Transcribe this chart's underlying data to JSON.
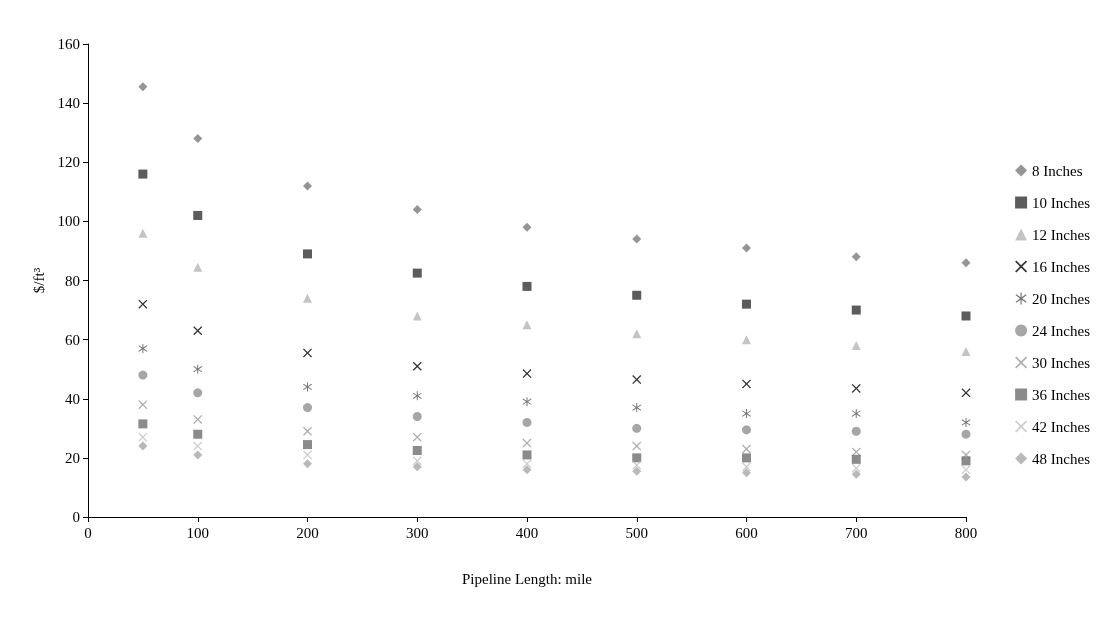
{
  "chart_data": {
    "type": "scatter",
    "xlabel": "Pipeline Length: mile",
    "ylabel": "$/ft³",
    "x": [
      50,
      100,
      200,
      300,
      400,
      500,
      600,
      700,
      800
    ],
    "xlim": [
      0,
      800
    ],
    "xticks": [
      0,
      100,
      200,
      300,
      400,
      500,
      600,
      700,
      800
    ],
    "ylim": [
      0,
      160
    ],
    "yticks": [
      0,
      20,
      40,
      60,
      80,
      100,
      120,
      140,
      160
    ],
    "grid": false,
    "legend": "right",
    "series": [
      {
        "name": "8 Inches",
        "color": "#7a7a7a",
        "marker": "diamond",
        "values": [
          145.5,
          128,
          112,
          104,
          98,
          94,
          91,
          88,
          86
        ]
      },
      {
        "name": "10 Inches",
        "color": "#333333",
        "marker": "square",
        "values": [
          116,
          102,
          89,
          82.5,
          78,
          75,
          72,
          70,
          68
        ]
      },
      {
        "name": "12 Inches",
        "color": "#b5b5b5",
        "marker": "triangle",
        "values": [
          96,
          84.5,
          74,
          68,
          65,
          62,
          60,
          58,
          56
        ]
      },
      {
        "name": "16 Inches",
        "color": "#000000",
        "marker": "cross",
        "values": [
          72,
          63,
          55.5,
          51,
          48.5,
          46.5,
          45,
          43.5,
          42
        ]
      },
      {
        "name": "20 Inches",
        "color": "#555555",
        "marker": "star",
        "values": [
          57,
          50,
          44,
          41,
          39,
          37,
          35,
          35,
          32
        ]
      },
      {
        "name": "24 Inches",
        "color": "#909090",
        "marker": "circle",
        "values": [
          48,
          42,
          37,
          34,
          32,
          30,
          29.5,
          29,
          28
        ]
      },
      {
        "name": "30 Inches",
        "color": "#9a9a9a",
        "marker": "cross",
        "values": [
          38,
          33,
          29,
          27,
          25,
          24,
          23,
          22,
          21
        ]
      },
      {
        "name": "36 Inches",
        "color": "#6e6e6e",
        "marker": "square",
        "values": [
          31.5,
          28,
          24.5,
          22.5,
          21,
          20,
          20,
          19.5,
          19
        ]
      },
      {
        "name": "42 Inches",
        "color": "#c0c0c0",
        "marker": "cross",
        "values": [
          27,
          24,
          21,
          19,
          18,
          17.5,
          17,
          16.5,
          16
        ]
      },
      {
        "name": "48 Inches",
        "color": "#a8a8a8",
        "marker": "diamond",
        "values": [
          24,
          21,
          18,
          17,
          16,
          15.5,
          15,
          14.5,
          13.5
        ]
      }
    ]
  }
}
